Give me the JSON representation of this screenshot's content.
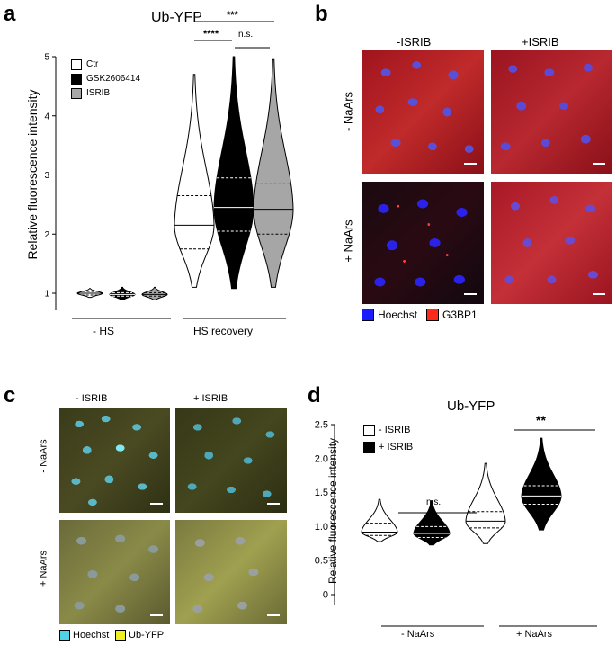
{
  "panels": {
    "a": {
      "letter": "a",
      "title": "Ub-YFP",
      "ylabel": "Relative fluorescence intensity",
      "group_labels": [
        "- HS",
        "HS recovery"
      ],
      "legend": [
        {
          "label": "Ctr",
          "color": "#ffffff"
        },
        {
          "label": "GSK2606414",
          "color": "#000000"
        },
        {
          "label": "ISRIB",
          "color": "#a6a6a6"
        }
      ],
      "significance": [
        "***",
        "****",
        "n.s."
      ]
    },
    "b": {
      "letter": "b",
      "col_labels": [
        "-ISRIB",
        "+ISRIB"
      ],
      "row_labels": [
        "- NaArs",
        "+ NaArs"
      ],
      "legend": [
        {
          "label": "Hoechst",
          "color": "#1a1aff"
        },
        {
          "label": "G3BP1",
          "color": "#ff2a1a"
        }
      ]
    },
    "c": {
      "letter": "c",
      "col_labels": [
        "- ISRIB",
        "+ ISRIB"
      ],
      "row_labels": [
        "- NaArs",
        "+ NaArs"
      ],
      "legend": [
        {
          "label": "Hoechst",
          "color": "#4fd2e6"
        },
        {
          "label": "Ub-YFP",
          "color": "#f0f020"
        }
      ]
    },
    "d": {
      "letter": "d",
      "title": "Ub-YFP",
      "ylabel": "Relative fluorescence intensity",
      "group_labels": [
        "- NaArs",
        "+ NaArs"
      ],
      "legend": [
        {
          "label": "- ISRIB",
          "color": "#ffffff"
        },
        {
          "label": "+ ISRIB",
          "color": "#000000"
        }
      ],
      "significance": [
        "n.s.",
        "**"
      ]
    }
  },
  "chart_data": [
    {
      "type": "violin",
      "title": "Ub-YFP",
      "ylabel": "Relative fluorescence intensity",
      "yticks": [
        "1",
        "2",
        "3",
        "4",
        "5"
      ],
      "ylim": [
        0.85,
        5.05
      ],
      "groups": [
        "- HS",
        "HS recovery"
      ],
      "series": [
        {
          "name": "Ctr",
          "color": "#ffffff",
          "violins": [
            {
              "group": "- HS",
              "median": 1.0,
              "q1": 0.97,
              "q3": 1.03,
              "min": 0.93,
              "max": 1.08
            },
            {
              "group": "HS recovery",
              "median": 2.15,
              "q1": 1.75,
              "q3": 2.65,
              "min": 1.1,
              "max": 4.7
            }
          ]
        },
        {
          "name": "GSK2606414",
          "color": "#000000",
          "violins": [
            {
              "group": "- HS",
              "median": 0.98,
              "q1": 0.95,
              "q3": 1.01,
              "min": 0.89,
              "max": 1.1
            },
            {
              "group": "HS recovery",
              "median": 2.45,
              "q1": 2.05,
              "q3": 2.95,
              "min": 1.08,
              "max": 5.0
            }
          ]
        },
        {
          "name": "ISRIB",
          "color": "#a6a6a6",
          "violins": [
            {
              "group": "- HS",
              "median": 0.98,
              "q1": 0.95,
              "q3": 1.01,
              "min": 0.89,
              "max": 1.1
            },
            {
              "group": "HS recovery",
              "median": 2.42,
              "q1": 2.0,
              "q3": 2.85,
              "min": 1.1,
              "max": 4.95
            }
          ]
        }
      ],
      "significance": [
        {
          "label": "***",
          "from": "Ctr",
          "to": "ISRIB",
          "group": "HS recovery"
        },
        {
          "label": "****",
          "from": "Ctr",
          "to": "GSK2606414",
          "group": "HS recovery"
        },
        {
          "label": "n.s.",
          "from": "GSK2606414",
          "to": "ISRIB",
          "group": "HS recovery"
        }
      ]
    },
    {
      "type": "violin",
      "title": "Ub-YFP",
      "ylabel": "Relative fluorescence intensity",
      "yticks": [
        "0",
        "0.5",
        "1.0",
        "1.5",
        "2.0",
        "2.5"
      ],
      "ylim": [
        0,
        2.5
      ],
      "groups": [
        "- NaArs",
        "+ NaArs"
      ],
      "series": [
        {
          "name": "- ISRIB",
          "color": "#ffffff",
          "violins": [
            {
              "group": "- NaArs",
              "median": 0.92,
              "q1": 0.87,
              "q3": 1.05,
              "min": 0.78,
              "max": 1.4
            },
            {
              "group": "+ NaArs",
              "median": 1.08,
              "q1": 0.98,
              "q3": 1.22,
              "min": 0.75,
              "max": 1.93
            }
          ]
        },
        {
          "name": "+ ISRIB",
          "color": "#000000",
          "violins": [
            {
              "group": "- NaArs",
              "median": 0.9,
              "q1": 0.84,
              "q3": 1.0,
              "min": 0.73,
              "max": 1.38
            },
            {
              "group": "+ NaArs",
              "median": 1.45,
              "q1": 1.33,
              "q3": 1.6,
              "min": 0.95,
              "max": 2.3
            }
          ]
        }
      ],
      "significance": [
        {
          "label": "n.s.",
          "group": "- NaArs"
        },
        {
          "label": "**",
          "group": "+ NaArs"
        }
      ]
    }
  ]
}
